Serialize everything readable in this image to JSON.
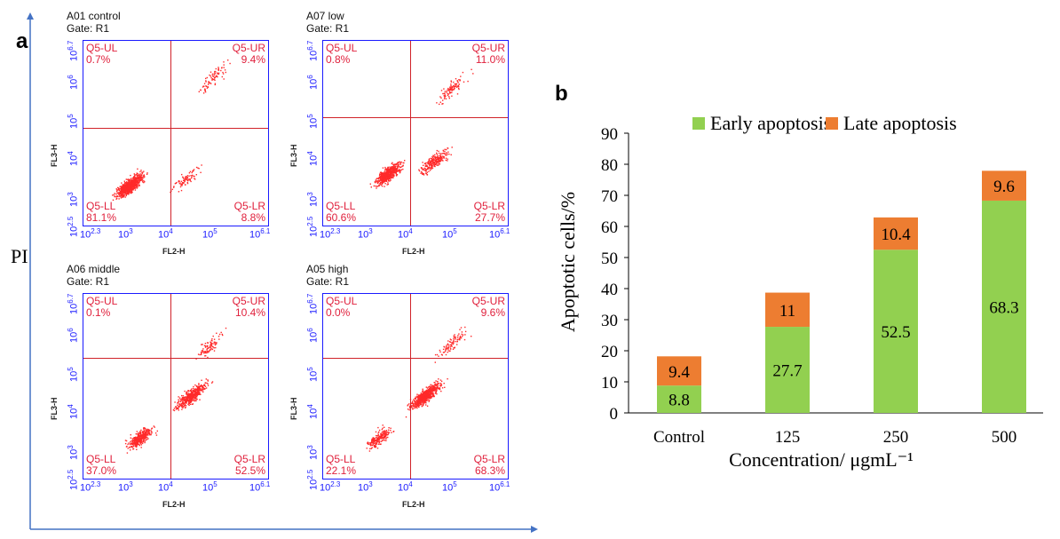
{
  "panel_a_label": "a",
  "panel_b_label": "b",
  "pi_label": "PI",
  "flow": [
    {
      "title": "A01 control",
      "gate": "Gate: R1",
      "ul": "Q5-UL",
      "ul_pct": "0.7%",
      "ur": "Q5-UR",
      "ur_pct": "9.4%",
      "ll": "Q5-LL",
      "ll_pct": "81.1%",
      "lr": "Q5-LR",
      "lr_pct": "8.8%"
    },
    {
      "title": "A07 low",
      "gate": "Gate: R1",
      "ul": "Q5-UL",
      "ul_pct": "0.8%",
      "ur": "Q5-UR",
      "ur_pct": "11.0%",
      "ll": "Q5-LL",
      "ll_pct": "60.6%",
      "lr": "Q5-LR",
      "lr_pct": "27.7%"
    },
    {
      "title": "A06 middle",
      "gate": "Gate: R1",
      "ul": "Q5-UL",
      "ul_pct": "0.1%",
      "ur": "Q5-UR",
      "ur_pct": "10.4%",
      "ll": "Q5-LL",
      "ll_pct": "37.0%",
      "lr": "Q5-LR",
      "lr_pct": "52.5%"
    },
    {
      "title": "A05 high",
      "gate": "Gate: R1",
      "ul": "Q5-UL",
      "ul_pct": "0.0%",
      "ur": "Q5-UR",
      "ur_pct": "9.6%",
      "ll": "Q5-LL",
      "ll_pct": "22.1%",
      "lr": "Q5-LR",
      "lr_pct": "68.3%"
    }
  ],
  "flow_axes": {
    "xlabel": "FL2-H",
    "ylabel": "FL3-H",
    "yticks": [
      "10^2.5",
      "10^3",
      "10^4",
      "10^5",
      "10^6",
      "10^6.7"
    ],
    "xticks": [
      "10^2.3",
      "10^3",
      "10^4",
      "10^5",
      "10^6.1"
    ]
  },
  "chart_data": {
    "type": "bar",
    "stacked": true,
    "categories": [
      "Control",
      "125",
      "250",
      "500"
    ],
    "series": [
      {
        "name": "Early apoptosis",
        "values": [
          8.8,
          27.7,
          52.5,
          68.3
        ],
        "color": "#92d050"
      },
      {
        "name": "Late apoptosis",
        "values": [
          9.4,
          11,
          10.4,
          9.6
        ],
        "color": "#ed7d31"
      }
    ],
    "xlabel": "Concentration/ μgmL⁻¹",
    "ylabel": "Apoptotic cells/%",
    "ylim": [
      0,
      90
    ],
    "yticks": [
      0,
      10,
      20,
      30,
      40,
      50,
      60,
      70,
      80,
      90
    ],
    "legend_position": "top"
  }
}
